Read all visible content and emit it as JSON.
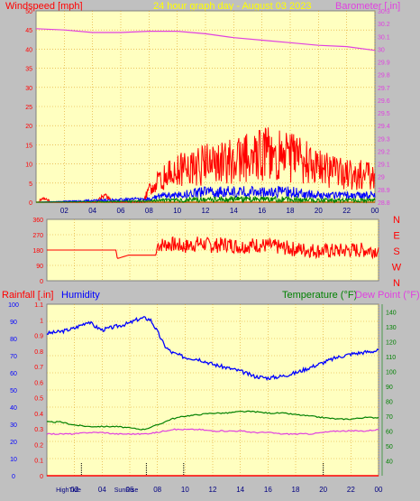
{
  "header": {
    "windspeed_label": "Windspeed [mph]",
    "title": "24 hour graph day - August 03 2023",
    "barometer_label": "Barometer [.in]"
  },
  "middle_header": {
    "rainfall_label": "Rainfall [.in]",
    "humidity_label": "Humidity",
    "temperature_label": "Temperature (°F)",
    "dewpoint_label": "Dew Point (°F)"
  },
  "colors": {
    "plot_bg": "#ffffc0",
    "grid": "#e0a020",
    "wind": "#ff0000",
    "gust_blue": "#0000ff",
    "gust_green": "#008000",
    "barometer": "#e040e0",
    "humidity": "#0000ff",
    "temperature": "#008000",
    "dewpoint": "#e040e0",
    "rainfall": "#ff0000",
    "winddir": "#ff0000",
    "zero_line": "#c06000"
  },
  "chart_data": [
    {
      "type": "line",
      "name": "wind",
      "x_ticks": [
        "02",
        "04",
        "06",
        "08",
        "10",
        "12",
        "14",
        "16",
        "18",
        "20",
        "22",
        "00"
      ],
      "left_axis": {
        "label": "Windspeed [mph]",
        "ylim": [
          0,
          50
        ],
        "ticks": [
          "0",
          "5",
          "10",
          "15",
          "20",
          "25",
          "30",
          "35",
          "40",
          "45",
          "50"
        ]
      },
      "right_axis": {
        "label": "Barometer [.in]",
        "ylim": [
          28.8,
          30.3
        ],
        "ticks": [
          "28.8",
          "28.9",
          "29",
          "29.1",
          "29.2",
          "29.3",
          "29.4",
          "29.5",
          "29.6",
          "29.7",
          "29.8",
          "29.9",
          "30",
          "30.1",
          "30.2",
          "30.3"
        ]
      },
      "series": [
        {
          "name": "Barometer",
          "axis": "right",
          "x": [
            0,
            2,
            4,
            6,
            8,
            10,
            12,
            14,
            16,
            18,
            20,
            22,
            24
          ],
          "y": [
            30.16,
            30.15,
            30.13,
            30.13,
            30.14,
            30.14,
            30.12,
            30.09,
            30.07,
            30.05,
            30.03,
            30.02,
            29.99
          ]
        },
        {
          "name": "Wind speed",
          "axis": "left",
          "x": [
            0,
            0.5,
            1.4,
            2,
            4,
            5.0,
            5.4,
            6,
            7.6,
            8,
            9,
            10,
            11,
            12,
            13,
            14,
            15,
            16,
            17,
            18,
            19,
            20,
            21,
            22,
            23,
            24
          ],
          "y": [
            0,
            1,
            0,
            0,
            0,
            2,
            0,
            0,
            0,
            4,
            7,
            9,
            10,
            11,
            11,
            12,
            13,
            14,
            14,
            13,
            12,
            10,
            9,
            8,
            8,
            7
          ]
        },
        {
          "name": "Wind speed (avg)",
          "axis": "left",
          "x": [
            0,
            8,
            9,
            10,
            12,
            14,
            16,
            18,
            20,
            22,
            24
          ],
          "y": [
            0,
            1,
            2,
            2,
            3,
            3,
            3,
            3,
            2,
            2,
            2
          ]
        }
      ]
    },
    {
      "type": "line",
      "name": "wind_direction",
      "x_ticks": [
        "02",
        "04",
        "06",
        "08",
        "10",
        "12",
        "14",
        "16",
        "18",
        "20",
        "22",
        "00"
      ],
      "left_axis": {
        "ylim": [
          0,
          360
        ],
        "ticks": [
          "0",
          "90",
          "180",
          "270",
          "360"
        ]
      },
      "right_axis": {
        "ticks": [
          "N",
          "W",
          "S",
          "E",
          "N"
        ]
      },
      "series": [
        {
          "name": "Direction",
          "x": [
            0,
            0.5,
            5,
            5.1,
            5.9,
            6,
            7.9,
            8,
            9,
            10,
            11,
            12,
            13,
            14,
            15,
            16,
            17,
            18,
            19,
            20,
            21,
            22,
            23,
            24
          ],
          "y": [
            180,
            180,
            180,
            130,
            150,
            150,
            150,
            210,
            215,
            200,
            220,
            205,
            215,
            200,
            210,
            205,
            195,
            185,
            180,
            175,
            175,
            180,
            180,
            180
          ]
        }
      ]
    },
    {
      "type": "line",
      "name": "temp_humidity",
      "x_ticks": [
        "02",
        "04",
        "06",
        "08",
        "10",
        "12",
        "14",
        "16",
        "18",
        "20",
        "22",
        "00"
      ],
      "left_axis_rain": {
        "label": "Rainfall [.in]",
        "ylim": [
          0,
          1.1
        ],
        "ticks": [
          "0",
          "0.1",
          "0.2",
          "0.3",
          "0.4",
          "0.5",
          "0.6",
          "0.7",
          "0.8",
          "0.9",
          "1",
          "1.1"
        ]
      },
      "left_axis_humidity": {
        "label": "Humidity",
        "ylim": [
          0,
          100
        ],
        "ticks": [
          "0",
          "10",
          "20",
          "30",
          "40",
          "50",
          "60",
          "70",
          "80",
          "90",
          "100"
        ]
      },
      "right_axis": {
        "label": "Temperature (°F)",
        "ylim": [
          30,
          145
        ],
        "ticks": [
          "40",
          "50",
          "60",
          "70",
          "80",
          "90",
          "100",
          "110",
          "120",
          "130",
          "140"
        ]
      },
      "bottom_labels": [
        "HighTide",
        "SunRise"
      ],
      "series": [
        {
          "name": "Humidity",
          "axis": "humidity",
          "x": [
            0,
            1,
            2,
            2.5,
            3,
            3.5,
            4,
            5,
            6,
            6.5,
            7,
            7.5,
            8,
            8.5,
            9,
            10,
            11,
            12,
            13,
            14,
            15,
            16,
            17,
            18,
            19,
            20,
            21,
            22,
            23,
            24
          ],
          "y": [
            83,
            84,
            86,
            88,
            90,
            87,
            85,
            87,
            89,
            91,
            92,
            91,
            84,
            76,
            72,
            69,
            68,
            65,
            63,
            61,
            58,
            57,
            58,
            60,
            63,
            66,
            69,
            71,
            72,
            73
          ]
        },
        {
          "name": "Temperature",
          "axis": "temp",
          "x": [
            0,
            1,
            2,
            3,
            4,
            5,
            6,
            7,
            8,
            9,
            10,
            11,
            12,
            13,
            14,
            15,
            16,
            17,
            18,
            19,
            20,
            21,
            22,
            23,
            24
          ],
          "y": [
            66,
            66,
            64,
            63,
            63,
            63,
            62,
            61,
            64,
            68,
            70,
            71,
            72,
            72,
            73,
            73,
            72,
            72,
            71,
            70,
            69,
            68,
            68,
            69,
            69
          ]
        },
        {
          "name": "Dew Point",
          "axis": "temp",
          "x": [
            0,
            1,
            2,
            3,
            4,
            5,
            6,
            7,
            8,
            9,
            10,
            11,
            12,
            13,
            14,
            15,
            16,
            17,
            18,
            19,
            20,
            21,
            22,
            23,
            24
          ],
          "y": [
            58,
            58,
            58,
            59,
            59,
            58,
            58,
            58,
            59,
            61,
            61,
            61,
            60,
            60,
            60,
            59,
            59,
            58,
            58,
            58,
            59,
            60,
            60,
            60,
            61
          ]
        },
        {
          "name": "Rainfall",
          "axis": "rain",
          "x": [
            0,
            24
          ],
          "y": [
            0,
            0
          ]
        }
      ]
    }
  ]
}
